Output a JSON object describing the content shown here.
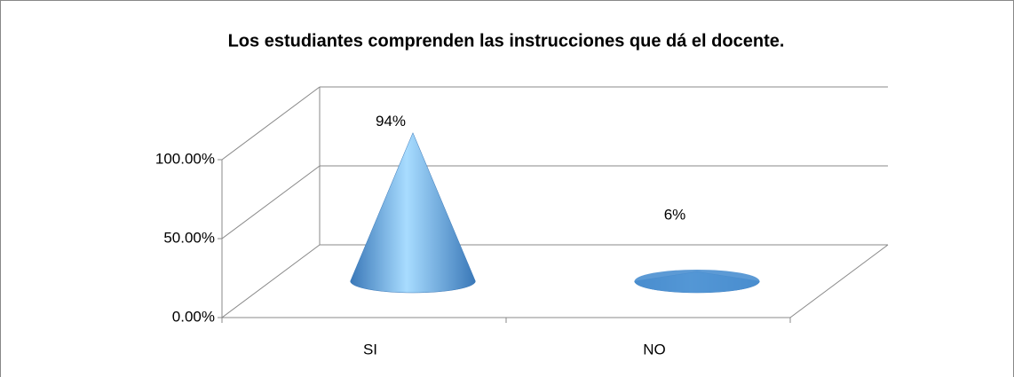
{
  "chart_data": {
    "type": "cone",
    "title": "Los estudiantes comprenden las instrucciones que dá el docente.",
    "categories": [
      "SI",
      "NO"
    ],
    "values": [
      94,
      6
    ],
    "value_labels": [
      "94%",
      "6%"
    ],
    "color": "#4a8fd0",
    "ylim": [
      0,
      100
    ],
    "yticks": [
      {
        "value": 0,
        "label": "0.00%"
      },
      {
        "value": 50,
        "label": "50.00%"
      },
      {
        "value": 100,
        "label": "100.00%"
      }
    ],
    "grid": true
  }
}
